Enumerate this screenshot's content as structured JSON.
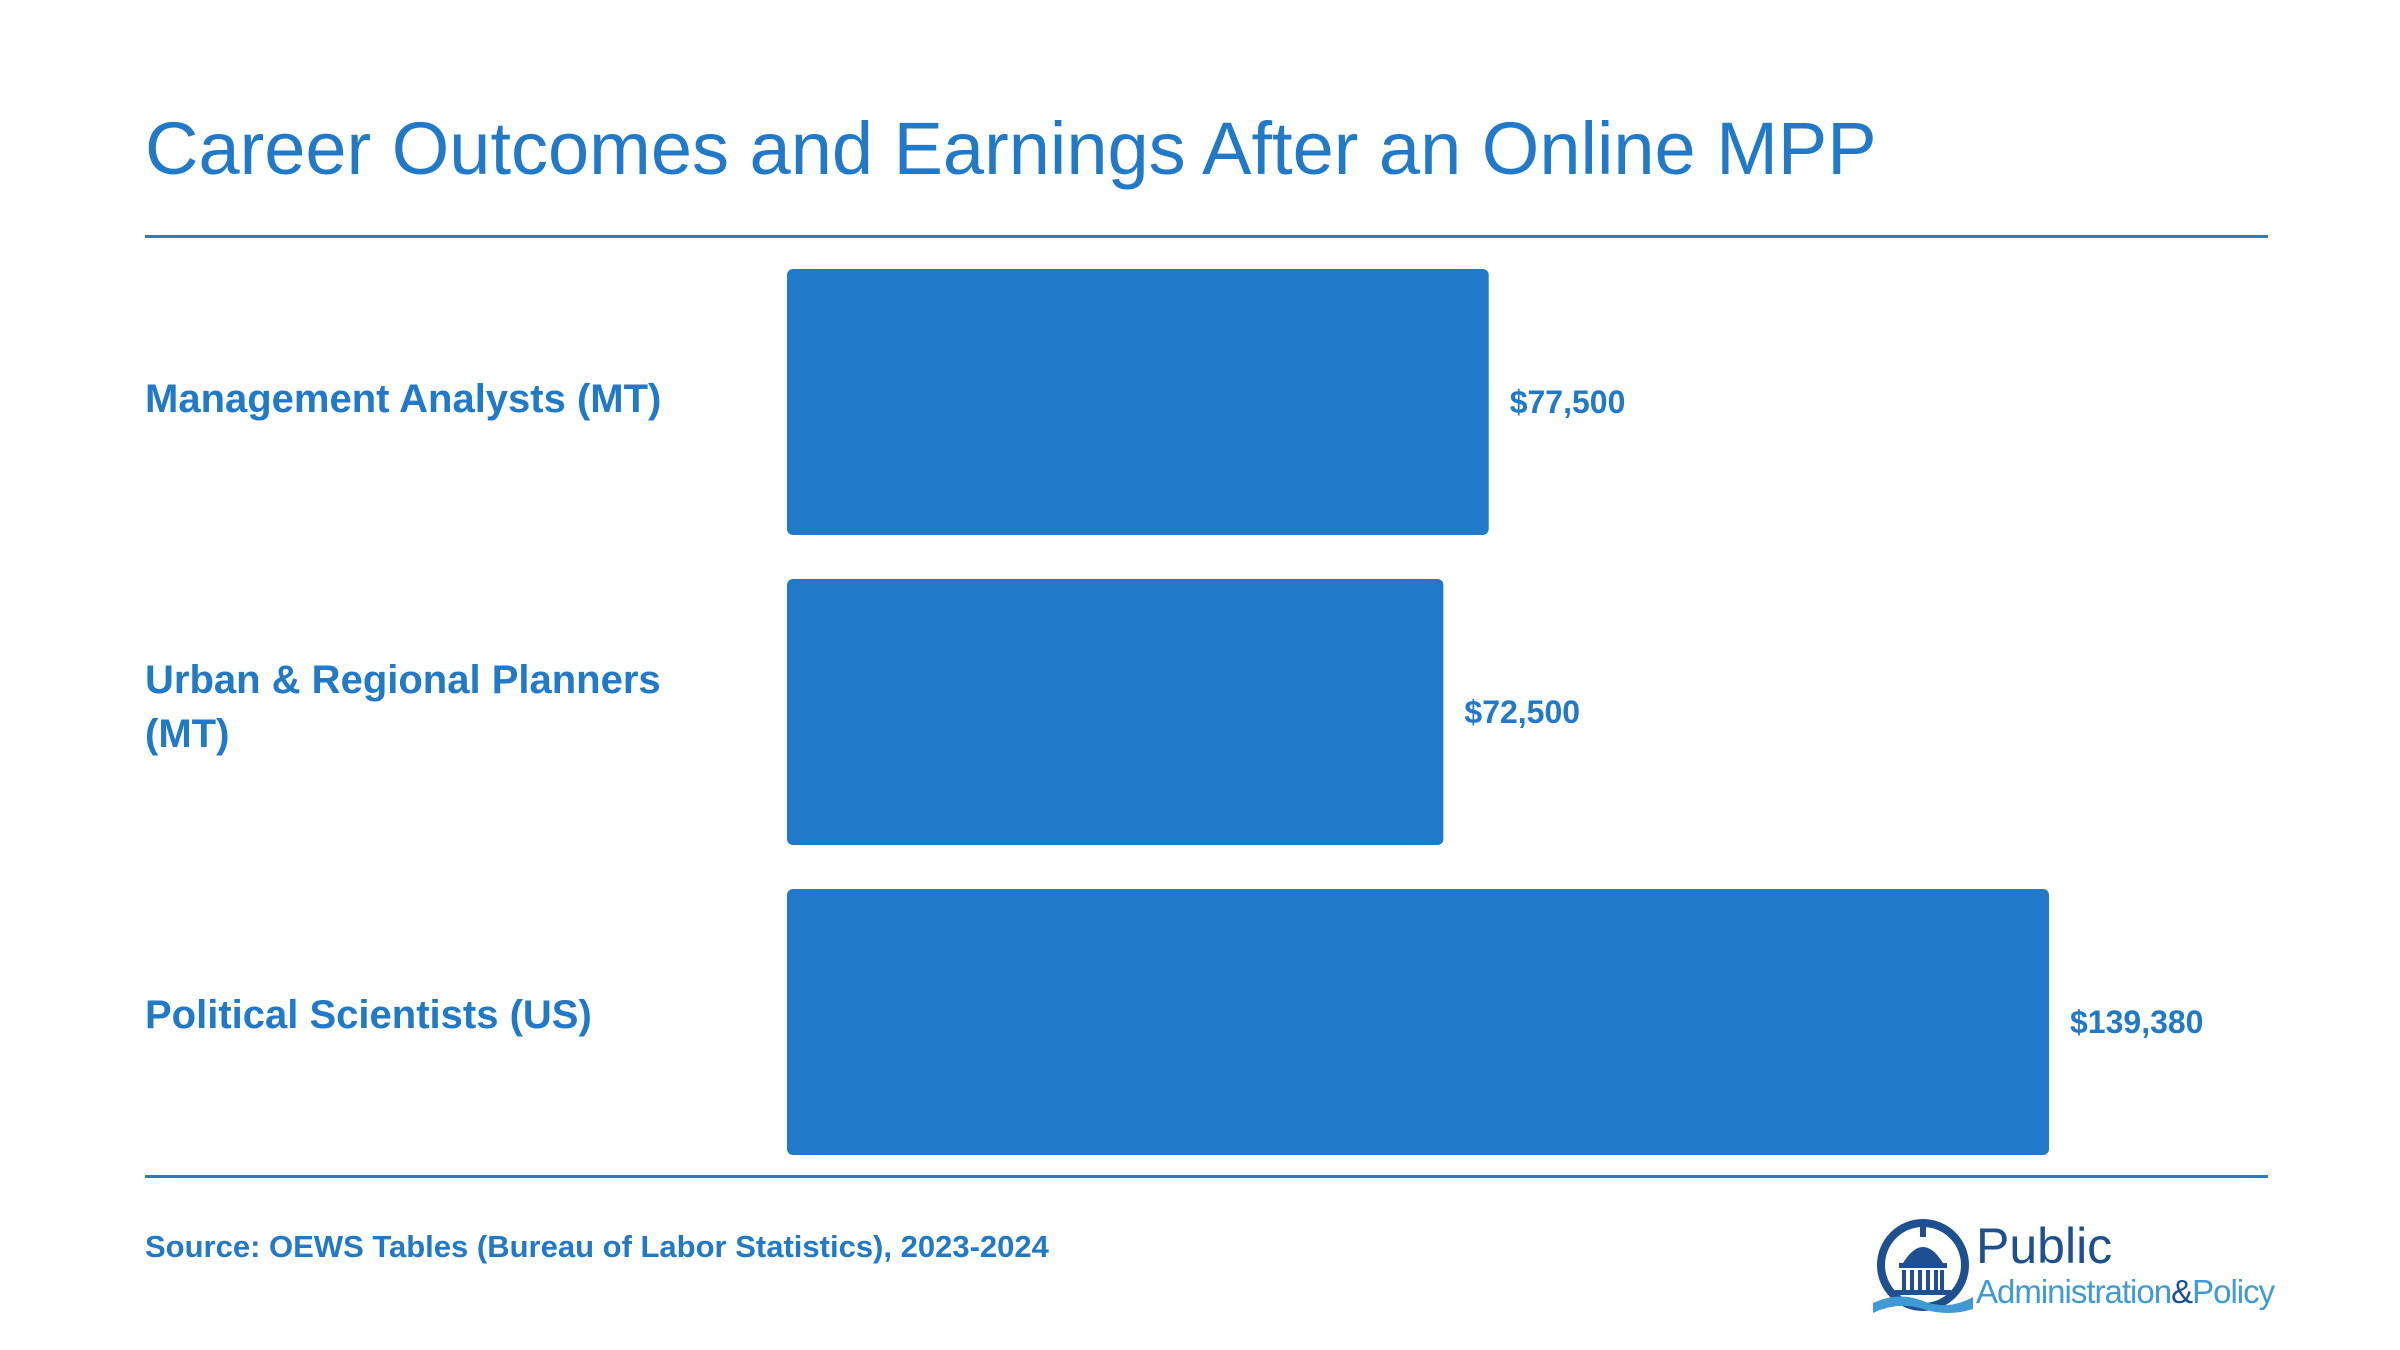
{
  "title": "Career Outcomes and Earnings After an Online MPP",
  "source": "Source: OEWS Tables (Bureau of Labor Statistics), 2023-2024",
  "logo": {
    "line1": "Public",
    "line2a": "Administration",
    "line2b": "&",
    "line2c": "Policy"
  },
  "colors": {
    "bar": "#2179c9",
    "text": "#2179c9",
    "logo_dark": "#1d4f91",
    "logo_light": "#3f9ad6"
  },
  "chart_data": {
    "type": "bar",
    "orientation": "horizontal",
    "categories": [
      "Management Analysts (MT)",
      "Urban & Regional Planners (MT)",
      "Political Scientists (US)"
    ],
    "values": [
      77500,
      72500,
      139380
    ],
    "value_labels": [
      "$77,500",
      "$72,500",
      "$139,380"
    ],
    "title": "Career Outcomes and Earnings After an Online MPP",
    "xlabel": "",
    "ylabel": "",
    "xlim": [
      0,
      139380
    ],
    "grid": false,
    "legend": "none"
  }
}
